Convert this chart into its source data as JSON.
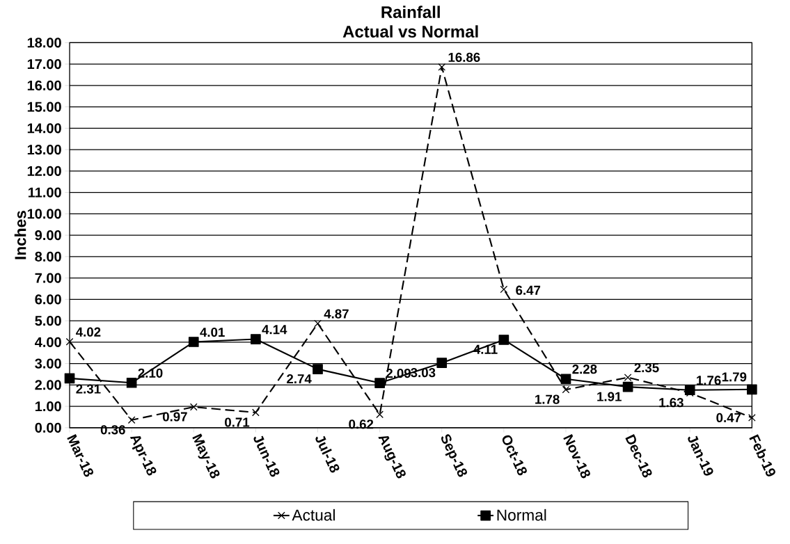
{
  "chart_data": {
    "type": "line",
    "title": "Rainfall\nActual vs Normal",
    "ylabel": "Inches",
    "categories": [
      "Mar-18",
      "Apr-18",
      "May-18",
      "Jun-18",
      "Jul-18",
      "Aug-18",
      "Sep-18",
      "Oct-18",
      "Nov-18",
      "Dec-18",
      "Jan-19",
      "Feb-19"
    ],
    "series": [
      {
        "name": "Actual",
        "color": "#000000",
        "marker": "cross",
        "line_style": "dashed",
        "values": [
          4.02,
          0.36,
          0.97,
          0.71,
          4.87,
          0.62,
          16.86,
          6.47,
          1.78,
          2.35,
          1.63,
          0.47
        ],
        "value_labels": [
          "4.02",
          "0.36",
          "0.97",
          "0.71",
          "4.87",
          "0.62",
          "16.86",
          "6.47",
          "1.78",
          "2.35",
          "1.63",
          "0.47"
        ]
      },
      {
        "name": "Normal",
        "color": "#000000",
        "marker": "square",
        "line_style": "solid",
        "values": [
          2.31,
          2.1,
          4.01,
          4.14,
          2.74,
          2.09,
          3.03,
          4.11,
          2.28,
          1.91,
          1.76,
          1.79
        ],
        "value_labels": [
          "2.31",
          "2.10",
          "4.01",
          "4.14",
          "2.74",
          "2.09",
          "3.03",
          "4.11",
          "2.28",
          "1.91",
          "1.76",
          "1.79"
        ]
      }
    ],
    "ylim": [
      0,
      18
    ],
    "yticks": [
      {
        "value": 0,
        "label": "0.00"
      },
      {
        "value": 1,
        "label": "1.00"
      },
      {
        "value": 2,
        "label": "2.00"
      },
      {
        "value": 3,
        "label": "3.00"
      },
      {
        "value": 4,
        "label": "4.00"
      },
      {
        "value": 5,
        "label": "5.00"
      },
      {
        "value": 6,
        "label": "6.00"
      },
      {
        "value": 7,
        "label": "7.00"
      },
      {
        "value": 8,
        "label": "8.00"
      },
      {
        "value": 9,
        "label": "9.00"
      },
      {
        "value": 10,
        "label": "10.00"
      },
      {
        "value": 11,
        "label": "11.00"
      },
      {
        "value": 12,
        "label": "12.00"
      },
      {
        "value": 13,
        "label": "13.00"
      },
      {
        "value": 14,
        "label": "14.00"
      },
      {
        "value": 15,
        "label": "15.00"
      },
      {
        "value": 16,
        "label": "16.00"
      },
      {
        "value": 17,
        "label": "17.00"
      },
      {
        "value": 18,
        "label": "18.00"
      }
    ],
    "grid": "y",
    "legend": "bottom"
  }
}
